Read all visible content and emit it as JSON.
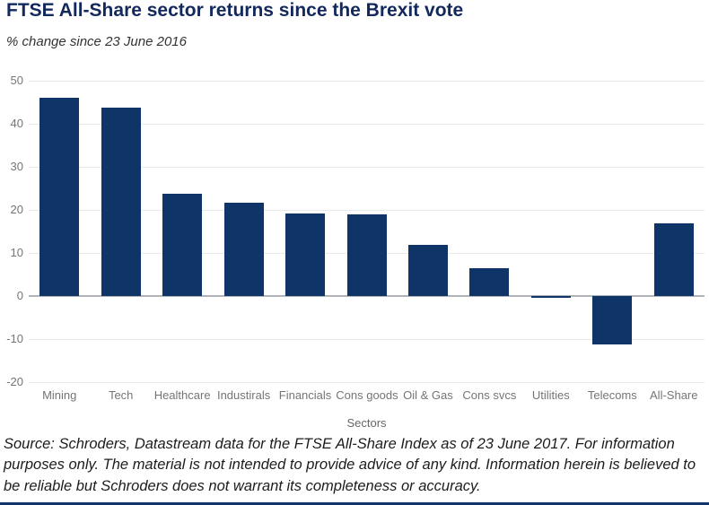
{
  "header": {
    "title": "FTSE All-Share sector returns since the Brexit vote",
    "subtitle": "% change since 23 June 2016"
  },
  "chart_data": {
    "type": "bar",
    "title": "FTSE All-Share sector returns since the Brexit vote",
    "subtitle": "% change since 23 June 2016",
    "categories": [
      "Mining",
      "Tech",
      "Healthcare",
      "Industirals",
      "Financials",
      "Cons goods",
      "Oil & Gas",
      "Cons svcs",
      "Utilities",
      "Telecoms",
      "All-Share"
    ],
    "values": [
      46,
      43.8,
      23.7,
      21.7,
      19.1,
      18.9,
      11.8,
      6.4,
      -0.5,
      -11.3,
      16.8
    ],
    "xlabel": "Sectors",
    "ylabel": "",
    "ylim": [
      -20,
      50
    ],
    "yticks": [
      50,
      40,
      30,
      20,
      10,
      0,
      -10,
      -20
    ],
    "grid": true,
    "legend": "none",
    "bar_color": "#0e3468"
  },
  "footer": {
    "source_text": "Source: Schroders, Datastream data for the FTSE All-Share Index as of 23 June 2017. For information purposes only. The material is not intended to provide advice of any kind. Information herein is believed to be reliable but Schroders does not warrant its completeness or accuracy."
  },
  "colors": {
    "bar": "#0e3468",
    "title": "#13295c",
    "axis_label": "#757575",
    "gridline": "#e9e9e9",
    "zero_line": "#b0b4b9",
    "bottom_rule": "#12366b"
  }
}
